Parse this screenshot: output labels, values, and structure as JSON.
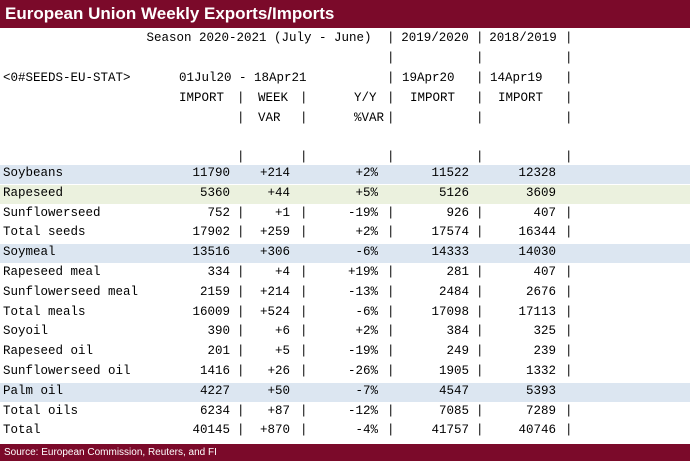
{
  "title": "European Union Weekly Exports/Imports",
  "source": "Source: European Commission, Reuters, and FI",
  "header": {
    "season": "Season 2020-2021 (July - June)",
    "col_2019": "2019/2020",
    "col_2018": "2018/2019",
    "ric": "<0#SEEDS-EU-STAT>",
    "date_range": "01Jul20 - 18Apr21",
    "date_2019": "19Apr20",
    "date_2018": "14Apr19",
    "import": "IMPORT",
    "week": "WEEK",
    "var": "VAR",
    "yy": "Y/Y",
    "pct_var": "%VAR",
    "import_2019": "IMPORT",
    "import_2018": "IMPORT"
  },
  "rows": [
    {
      "label": "Soybeans",
      "import": "11790",
      "week_var": "+214",
      "yy_var": "+2%",
      "y2019": "11522",
      "y2018": "12328",
      "highlight": "blue"
    },
    {
      "label": "Rapeseed",
      "import": "5360",
      "week_var": "+44",
      "yy_var": "+5%",
      "y2019": "5126",
      "y2018": "3609",
      "highlight": "green"
    },
    {
      "label": "Sunflowerseed",
      "import": "752",
      "week_var": "+1",
      "yy_var": "-19%",
      "y2019": "926",
      "y2018": "407",
      "highlight": ""
    },
    {
      "label": "Total seeds",
      "import": "17902",
      "week_var": "+259",
      "yy_var": "+2%",
      "y2019": "17574",
      "y2018": "16344",
      "highlight": ""
    },
    {
      "label": "Soymeal",
      "import": "13516",
      "week_var": "+306",
      "yy_var": "-6%",
      "y2019": "14333",
      "y2018": "14030",
      "highlight": "blue"
    },
    {
      "label": "Rapeseed meal",
      "import": "334",
      "week_var": "+4",
      "yy_var": "+19%",
      "y2019": "281",
      "y2018": "407",
      "highlight": ""
    },
    {
      "label": "Sunflowerseed meal",
      "import": "2159",
      "week_var": "+214",
      "yy_var": "-13%",
      "y2019": "2484",
      "y2018": "2676",
      "highlight": ""
    },
    {
      "label": "Total meals",
      "import": "16009",
      "week_var": "+524",
      "yy_var": "-6%",
      "y2019": "17098",
      "y2018": "17113",
      "highlight": ""
    },
    {
      "label": "Soyoil",
      "import": "390",
      "week_var": "+6",
      "yy_var": "+2%",
      "y2019": "384",
      "y2018": "325",
      "highlight": ""
    },
    {
      "label": "Rapeseed oil",
      "import": "201",
      "week_var": "+5",
      "yy_var": "-19%",
      "y2019": "249",
      "y2018": "239",
      "highlight": ""
    },
    {
      "label": "Sunflowerseed oil",
      "import": "1416",
      "week_var": "+26",
      "yy_var": "-26%",
      "y2019": "1905",
      "y2018": "1332",
      "highlight": ""
    },
    {
      "label": "Palm oil",
      "import": "4227",
      "week_var": "+50",
      "yy_var": "-7%",
      "y2019": "4547",
      "y2018": "5393",
      "highlight": "blue"
    },
    {
      "label": "Total oils",
      "import": "6234",
      "week_var": "+87",
      "yy_var": "-12%",
      "y2019": "7085",
      "y2018": "7289",
      "highlight": ""
    },
    {
      "label": "Total",
      "import": "40145",
      "week_var": "+870",
      "yy_var": "-4%",
      "y2019": "41757",
      "y2018": "40746",
      "highlight": ""
    }
  ]
}
